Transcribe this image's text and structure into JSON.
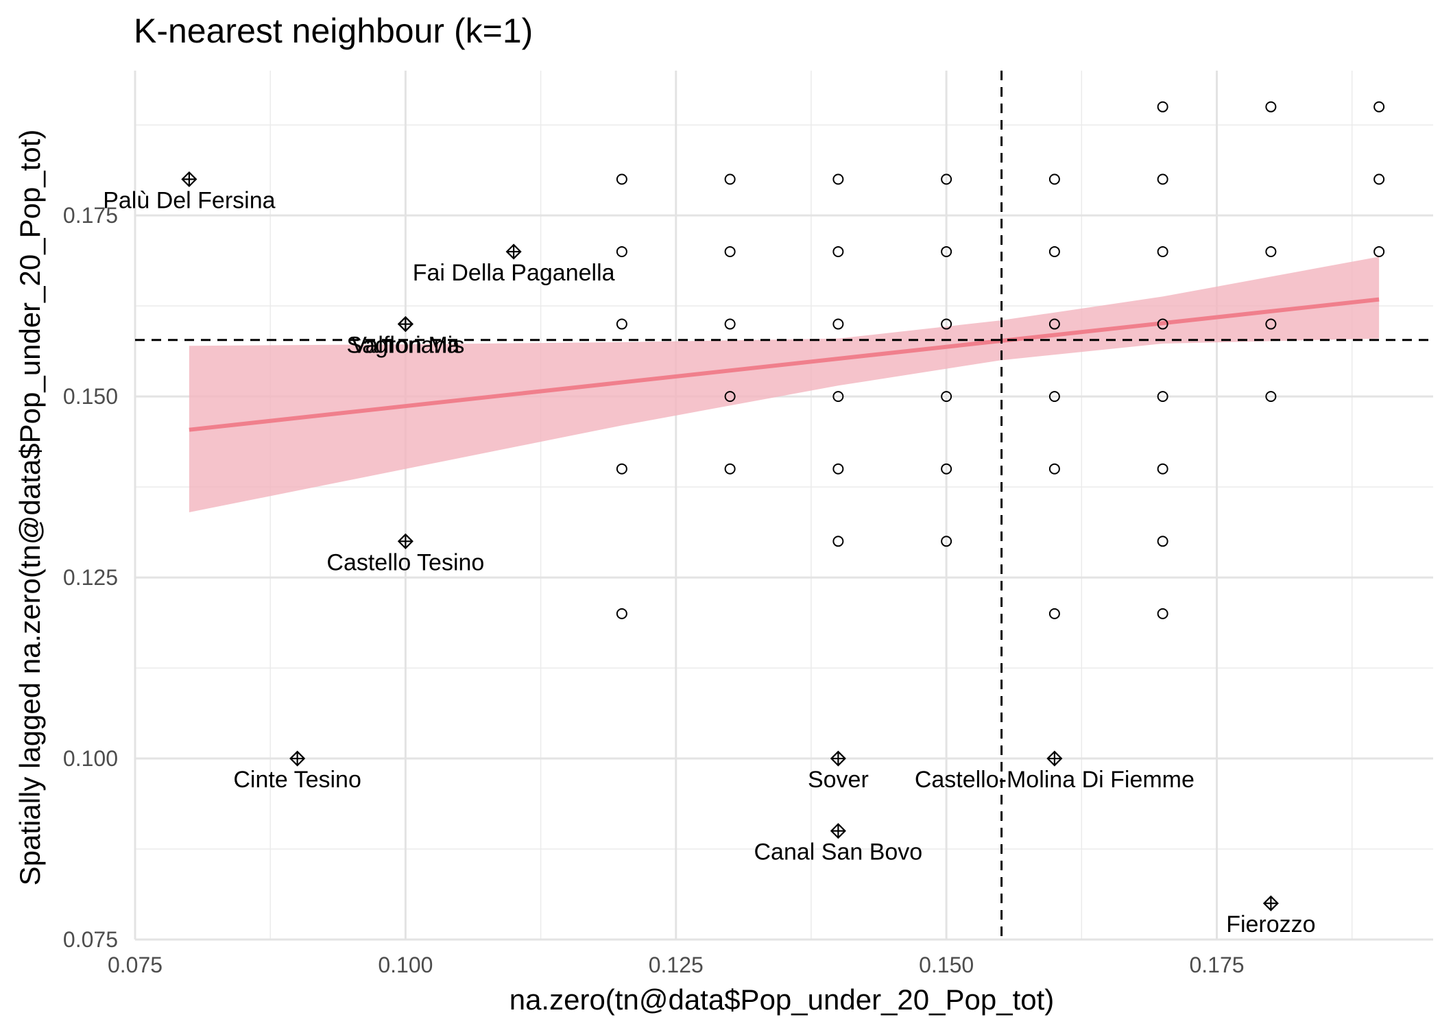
{
  "chart_data": {
    "type": "scatter",
    "title": "K-nearest neighbour (k=1)",
    "xlabel": "na.zero(tn@data$Pop_under_20_Pop_tot)",
    "ylabel": "Spatially lagged na.zero(tn@data$Pop_under_20_Pop_tot)",
    "xlim": [
      0.075,
      0.195
    ],
    "ylim": [
      0.075,
      0.195
    ],
    "x_ticks": [
      0.075,
      0.1,
      0.125,
      0.15,
      0.175
    ],
    "x_tick_labels": [
      "0.075",
      "0.100",
      "0.125",
      "0.150",
      "0.175"
    ],
    "y_ticks": [
      0.075,
      0.1,
      0.125,
      0.15,
      0.175
    ],
    "y_tick_labels": [
      "0.075",
      "0.100",
      "0.125",
      "0.150",
      "0.175"
    ],
    "grid": true,
    "mean_x": 0.1551,
    "mean_y": 0.1578,
    "regression": {
      "x": [
        0.08,
        0.19
      ],
      "fit": [
        0.1454,
        0.1634
      ],
      "ci_x": [
        0.08,
        0.1,
        0.12,
        0.14,
        0.155,
        0.17,
        0.19
      ],
      "ci_lower": [
        0.134,
        0.14,
        0.146,
        0.1515,
        0.155,
        0.1573,
        0.158
      ],
      "ci_upper": [
        0.157,
        0.1572,
        0.1575,
        0.158,
        0.1605,
        0.1638,
        0.1693
      ],
      "color": "#f07f8c",
      "band_color": "#f3b4be"
    },
    "points": [
      {
        "x": 0.12,
        "y": 0.18
      },
      {
        "x": 0.13,
        "y": 0.18
      },
      {
        "x": 0.14,
        "y": 0.18
      },
      {
        "x": 0.15,
        "y": 0.18
      },
      {
        "x": 0.16,
        "y": 0.18
      },
      {
        "x": 0.17,
        "y": 0.18
      },
      {
        "x": 0.19,
        "y": 0.18
      },
      {
        "x": 0.17,
        "y": 0.19
      },
      {
        "x": 0.18,
        "y": 0.19
      },
      {
        "x": 0.19,
        "y": 0.19
      },
      {
        "x": 0.12,
        "y": 0.17
      },
      {
        "x": 0.13,
        "y": 0.17
      },
      {
        "x": 0.14,
        "y": 0.17
      },
      {
        "x": 0.15,
        "y": 0.17
      },
      {
        "x": 0.16,
        "y": 0.17
      },
      {
        "x": 0.17,
        "y": 0.17
      },
      {
        "x": 0.18,
        "y": 0.17
      },
      {
        "x": 0.19,
        "y": 0.17
      },
      {
        "x": 0.12,
        "y": 0.16
      },
      {
        "x": 0.13,
        "y": 0.16
      },
      {
        "x": 0.14,
        "y": 0.16
      },
      {
        "x": 0.15,
        "y": 0.16
      },
      {
        "x": 0.16,
        "y": 0.16
      },
      {
        "x": 0.17,
        "y": 0.16
      },
      {
        "x": 0.18,
        "y": 0.16
      },
      {
        "x": 0.13,
        "y": 0.15
      },
      {
        "x": 0.14,
        "y": 0.15
      },
      {
        "x": 0.15,
        "y": 0.15
      },
      {
        "x": 0.16,
        "y": 0.15
      },
      {
        "x": 0.17,
        "y": 0.15
      },
      {
        "x": 0.18,
        "y": 0.15
      },
      {
        "x": 0.12,
        "y": 0.14
      },
      {
        "x": 0.13,
        "y": 0.14
      },
      {
        "x": 0.14,
        "y": 0.14
      },
      {
        "x": 0.15,
        "y": 0.14
      },
      {
        "x": 0.16,
        "y": 0.14
      },
      {
        "x": 0.17,
        "y": 0.14
      },
      {
        "x": 0.14,
        "y": 0.13
      },
      {
        "x": 0.15,
        "y": 0.13
      },
      {
        "x": 0.17,
        "y": 0.13
      },
      {
        "x": 0.12,
        "y": 0.12
      },
      {
        "x": 0.16,
        "y": 0.12
      },
      {
        "x": 0.17,
        "y": 0.12
      }
    ],
    "influential": [
      {
        "x": 0.08,
        "y": 0.18,
        "label": "Palù Del Fersina"
      },
      {
        "x": 0.11,
        "y": 0.17,
        "label": "Fai Della Paganella"
      },
      {
        "x": 0.1,
        "y": 0.16,
        "label": "Sagron Mis"
      },
      {
        "x": 0.1,
        "y": 0.16,
        "label": "Valfloriana"
      },
      {
        "x": 0.1,
        "y": 0.13,
        "label": "Castello Tesino"
      },
      {
        "x": 0.09,
        "y": 0.1,
        "label": "Cinte Tesino"
      },
      {
        "x": 0.14,
        "y": 0.1,
        "label": "Sover"
      },
      {
        "x": 0.16,
        "y": 0.1,
        "label": "Castello-Molina Di Fiemme"
      },
      {
        "x": 0.14,
        "y": 0.09,
        "label": "Canal San Bovo"
      },
      {
        "x": 0.18,
        "y": 0.08,
        "label": "Fierozzo"
      }
    ]
  }
}
